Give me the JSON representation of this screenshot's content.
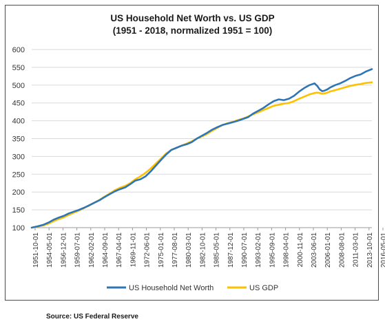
{
  "chart_data": {
    "type": "line",
    "title": "US Household Net Worth vs. US GDP",
    "subtitle": "(1951 - 2018, normalized 1951 = 100)",
    "xlabel": "",
    "ylabel": "",
    "ylim": [
      100,
      600
    ],
    "y_ticks": [
      100,
      150,
      200,
      250,
      300,
      350,
      400,
      450,
      500,
      550,
      600
    ],
    "grid": true,
    "legend_position": "bottom",
    "x_tick_labels": [
      "1951-10-01",
      "1954-05-01",
      "1956-12-01",
      "1959-07-01",
      "1962-02-01",
      "1964-09-01",
      "1967-04-01",
      "1969-11-01",
      "1972-06-01",
      "1975-01-01",
      "1977-08-01",
      "1980-03-01",
      "1982-10-01",
      "1985-05-01",
      "1987-12-01",
      "1990-07-01",
      "1993-02-01",
      "1995-09-01",
      "1998-04-01",
      "2000-11-01",
      "2003-06-01",
      "2006-01-01",
      "2008-08-01",
      "2011-03-01",
      "2013-10-01",
      "2016-05-01"
    ],
    "series": [
      {
        "name": "US Household Net Worth",
        "color": "#2e75b6",
        "x": [
          1951.75,
          1953,
          1954,
          1955,
          1956,
          1957,
          1958,
          1959,
          1960,
          1961,
          1962,
          1963,
          1964,
          1965,
          1966,
          1967,
          1968,
          1969,
          1970,
          1971,
          1972,
          1973,
          1974,
          1975,
          1976,
          1977,
          1978,
          1979,
          1980,
          1981,
          1982,
          1983,
          1984,
          1985,
          1986,
          1987,
          1988,
          1989,
          1990,
          1991,
          1992,
          1993,
          1994,
          1995,
          1996,
          1997,
          1998,
          1999,
          2000,
          2001,
          2002,
          2003,
          2004,
          2005,
          2006,
          2007,
          2007.5,
          2008,
          2008.5,
          2009,
          2009.5,
          2010,
          2011,
          2012,
          2013,
          2014,
          2015,
          2016,
          2017,
          2018.2
        ],
        "values": [
          100,
          104,
          108,
          114,
          122,
          128,
          133,
          140,
          145,
          150,
          156,
          163,
          170,
          177,
          186,
          194,
          202,
          208,
          213,
          222,
          232,
          236,
          244,
          258,
          274,
          290,
          305,
          318,
          324,
          330,
          334,
          340,
          350,
          358,
          366,
          375,
          382,
          388,
          392,
          396,
          400,
          405,
          410,
          420,
          428,
          436,
          446,
          455,
          460,
          458,
          462,
          470,
          482,
          492,
          500,
          505,
          498,
          488,
          483,
          485,
          488,
          493,
          500,
          505,
          512,
          520,
          526,
          530,
          538,
          545
        ]
      },
      {
        "name": "US GDP",
        "color": "#ffc000",
        "x": [
          1951.75,
          1953,
          1954,
          1955,
          1956,
          1957,
          1958,
          1959,
          1960,
          1961,
          1962,
          1963,
          1964,
          1965,
          1966,
          1967,
          1968,
          1969,
          1970,
          1971,
          1972,
          1973,
          1974,
          1975,
          1976,
          1977,
          1978,
          1979,
          1980,
          1981,
          1982,
          1983,
          1984,
          1985,
          1986,
          1987,
          1988,
          1989,
          1990,
          1991,
          1992,
          1993,
          1994,
          1995,
          1996,
          1997,
          1998,
          1999,
          2000,
          2001,
          2002,
          2003,
          2004,
          2005,
          2006,
          2007,
          2007.5,
          2008,
          2008.5,
          2009,
          2009.5,
          2010,
          2011,
          2012,
          2013,
          2014,
          2015,
          2016,
          2017,
          2018.2
        ],
        "values": [
          100,
          103,
          106,
          111,
          118,
          124,
          129,
          136,
          142,
          148,
          155,
          162,
          170,
          178,
          187,
          196,
          205,
          212,
          217,
          225,
          236,
          244,
          254,
          266,
          280,
          294,
          308,
          318,
          324,
          330,
          336,
          342,
          350,
          356,
          363,
          372,
          380,
          388,
          393,
          397,
          402,
          406,
          412,
          418,
          424,
          430,
          436,
          442,
          445,
          448,
          450,
          455,
          462,
          468,
          474,
          478,
          479,
          478,
          476,
          477,
          479,
          482,
          486,
          490,
          494,
          498,
          501,
          503,
          506,
          508
        ]
      }
    ]
  },
  "source": "Source: US Federal Reserve"
}
